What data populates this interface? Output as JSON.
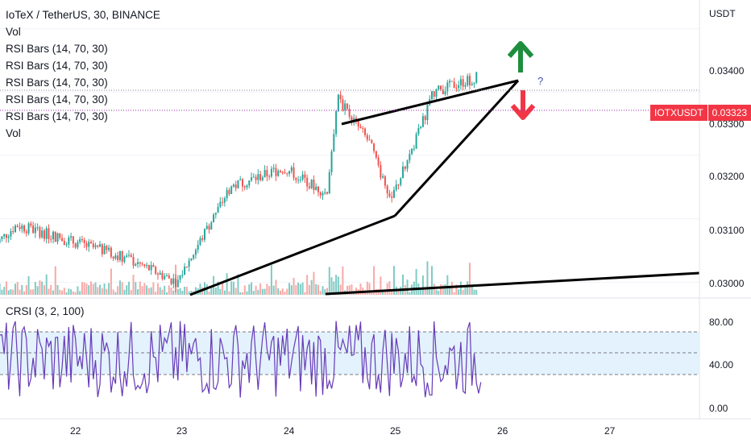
{
  "legend": {
    "symbol_line": "IoTeX / TetherUS, 30, BINANCE",
    "vol1": "Vol",
    "rsi1": "RSI Bars (14, 70, 30)",
    "rsi2": "RSI Bars (14, 70, 30)",
    "rsi3": "RSI Bars (14, 70, 30)",
    "rsi4": "RSI Bars (14, 70, 30)",
    "rsi5": "RSI Bars (14, 70, 30)",
    "vol2": "Vol"
  },
  "price_axis": {
    "unit": "USDT",
    "ticks": [
      "0.03400",
      "0.03300",
      "0.03200",
      "0.03100",
      "0.03000"
    ]
  },
  "price_tag": {
    "symbol": "IOTXUSDT",
    "value": "0.03323"
  },
  "crsi": {
    "label": "CRSI (3, 2, 100)",
    "ticks": [
      "80.00",
      "40.00",
      "0.00"
    ]
  },
  "annotation": {
    "question": "?"
  },
  "colors": {
    "up": "#26a69a",
    "down": "#ef5350",
    "accent_arrow_up": "#1e8e3e",
    "accent_arrow_down": "#f23645",
    "crsi_line": "#673ab7",
    "crsi_band": "#e3f2fd"
  },
  "chart_data": {
    "type": "candlestick",
    "x_axis_labels": [
      "22",
      "23",
      "24",
      "25",
      "26",
      "27"
    ],
    "ylim": [
      0.02975,
      0.03445
    ],
    "last_price": 0.03323,
    "candles_approx": [
      {
        "day": 21.5,
        "price": 0.0309
      },
      {
        "day": 22.5,
        "price": 0.0304
      },
      {
        "day": 23.0,
        "price": 0.03
      },
      {
        "day": 23.5,
        "price": 0.0315
      },
      {
        "day": 24.0,
        "price": 0.0318
      },
      {
        "day": 24.4,
        "price": 0.0314
      },
      {
        "day": 24.5,
        "price": 0.0329
      },
      {
        "day": 24.8,
        "price": 0.0322
      },
      {
        "day": 25.0,
        "price": 0.0313
      },
      {
        "day": 25.2,
        "price": 0.0321
      },
      {
        "day": 25.4,
        "price": 0.033
      },
      {
        "day": 25.8,
        "price": 0.03323
      }
    ],
    "crsi_ylim": [
      0,
      100
    ],
    "crsi_band": [
      30,
      70
    ]
  }
}
